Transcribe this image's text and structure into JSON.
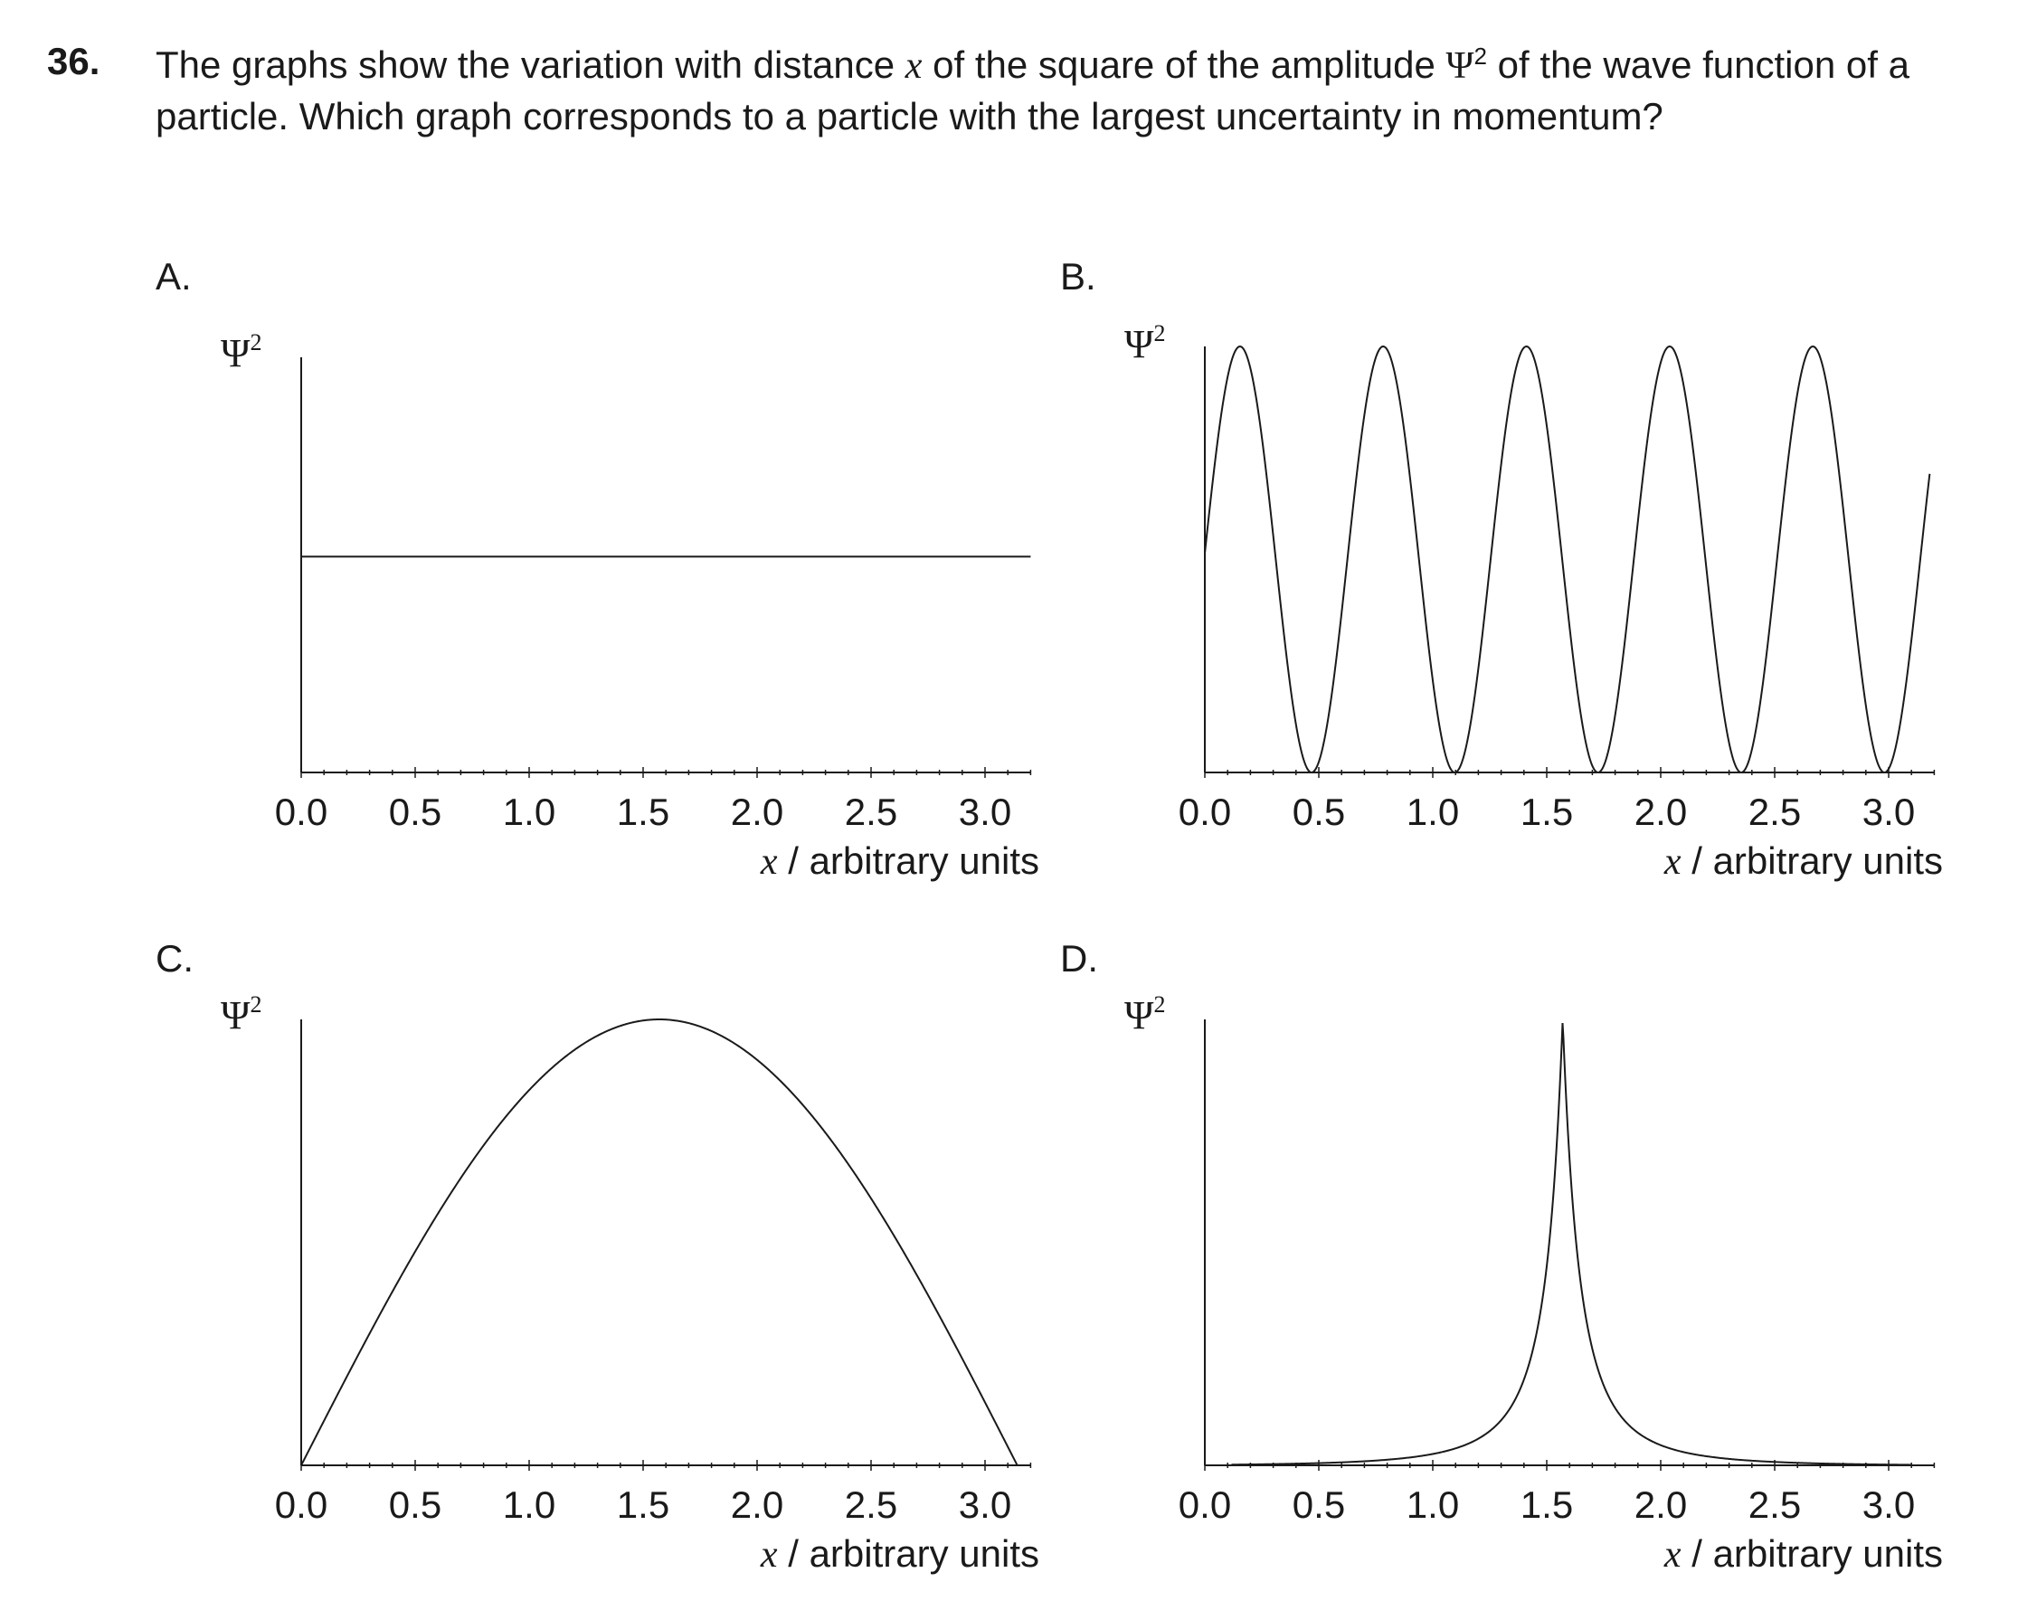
{
  "question": {
    "number": "36.",
    "text_before_x": "The graphs show the variation with distance ",
    "x_symbol": "x",
    "text_after_x": " of the square of the amplitude ",
    "psi": "Ψ",
    "psi_exp": "2",
    "text_after_psi": " of the wave function of a particle.  Which graph corresponds to a particle with the largest uncertainty in momentum?"
  },
  "options": {
    "A": "A.",
    "B": "B.",
    "C": "C.",
    "D": "D."
  },
  "chart_data": [
    {
      "id": "A",
      "type": "line",
      "ylabel": "Ψ²",
      "xlabel": "x / arbitrary units",
      "xlim": [
        0,
        3.2
      ],
      "ylim": [
        0,
        1
      ],
      "xticks": [
        "0.0",
        "0.5",
        "1.0",
        "1.5",
        "2.0",
        "2.5",
        "3.0"
      ],
      "curve": "constant",
      "y_value": 0.52
    },
    {
      "id": "B",
      "type": "line",
      "ylabel": "Ψ²",
      "xlabel": "x / arbitrary units",
      "xlim": [
        0,
        3.2
      ],
      "ylim": [
        0,
        1
      ],
      "xticks": [
        "0.0",
        "0.5",
        "1.0",
        "1.5",
        "2.0",
        "2.5",
        "3.0"
      ],
      "curve": "periodic",
      "peaks_x": [
        0.16,
        0.8,
        1.43,
        2.07,
        2.7
      ],
      "troughs_x": [
        0.48,
        1.12,
        1.75,
        2.39,
        3.02
      ],
      "x_end": 3.18
    },
    {
      "id": "C",
      "type": "line",
      "ylabel": "Ψ²",
      "xlabel": "x / arbitrary units",
      "xlim": [
        0,
        3.2
      ],
      "ylim": [
        0,
        1
      ],
      "xticks": [
        "0.0",
        "0.5",
        "1.0",
        "1.5",
        "2.0",
        "2.5",
        "3.0"
      ],
      "curve": "single-hump",
      "peak_x": 1.57,
      "zeros_x": [
        0,
        3.14
      ]
    },
    {
      "id": "D",
      "type": "line",
      "ylabel": "Ψ²",
      "xlabel": "x / arbitrary units",
      "xlim": [
        0,
        3.2
      ],
      "ylim": [
        0,
        1
      ],
      "xticks": [
        "0.0",
        "0.5",
        "1.0",
        "1.5",
        "2.0",
        "2.5",
        "3.0"
      ],
      "curve": "sharp-peak",
      "peak_x": 1.57
    }
  ]
}
